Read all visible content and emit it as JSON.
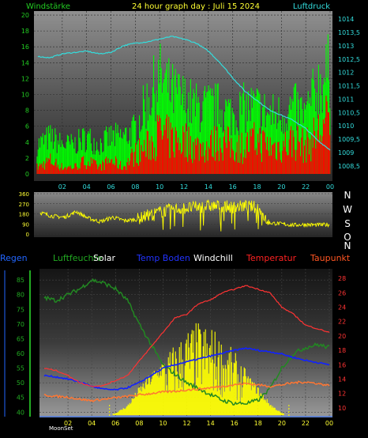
{
  "header": {
    "left_label": "Windstärke",
    "title": "24 hour graph day : Juli 15 2024",
    "right_label": "Luftdruck"
  },
  "legend": [
    {
      "label": "Regen",
      "color": "#2266ff"
    },
    {
      "label": "Luftfeuchte",
      "color": "#22aa22"
    },
    {
      "label": "Solar",
      "color": "#ffffff"
    },
    {
      "label": "Temp Boden",
      "color": "#2233ff"
    },
    {
      "label": "Windchill",
      "color": "#ffffff"
    },
    {
      "label": "Temperatur",
      "color": "#ff2222"
    },
    {
      "label": "Taupunkt",
      "color": "#ff5522"
    }
  ],
  "direction_labels": [
    "N",
    "W",
    "S",
    "O",
    "N"
  ],
  "footer": {
    "moon_label": "MoonSet"
  },
  "colors": {
    "wind_gust": "#00ff00",
    "wind_avg": "#ff0000",
    "pressure": "#33dddd",
    "direction": "#ffff00",
    "solar": "#ffff00",
    "temperature": "#ff3333",
    "humidity": "#228822",
    "soil_temp": "#1122ff",
    "dewpoint": "#ff7733",
    "windchill": "#ffffff"
  },
  "chart_data": [
    {
      "type": "line",
      "title": "24 hour graph day : Juli 15 2024",
      "xlabel": "",
      "y_left_label": "Windstärke",
      "y_right_label": "Luftdruck",
      "x_ticks": [
        "02",
        "04",
        "06",
        "08",
        "10",
        "12",
        "14",
        "16",
        "18",
        "20",
        "22",
        "00"
      ],
      "y_left_ticks": [
        "0",
        "2",
        "4",
        "6",
        "8",
        "10",
        "12",
        "14",
        "16",
        "18",
        "20"
      ],
      "y_left_lim": [
        0,
        20.5
      ],
      "y_right_ticks": [
        "1008,5",
        "1009",
        "1009,5",
        "1010",
        "1010,5",
        "1011",
        "1011,5",
        "1012",
        "1012,5",
        "1013",
        "1013,5",
        "1014"
      ],
      "y_right_lim": [
        1008.2,
        1014.3
      ],
      "x_hours": [
        0,
        1,
        2,
        3,
        4,
        5,
        6,
        7,
        8,
        9,
        10,
        11,
        12,
        13,
        14,
        15,
        16,
        17,
        18,
        19,
        20,
        21,
        22,
        23,
        24
      ],
      "series": [
        {
          "name": "Windstärke Böen",
          "axis": "left",
          "values": [
            4,
            5,
            4,
            4,
            5,
            4,
            5,
            5,
            6,
            10,
            13,
            11,
            10,
            9,
            9,
            9,
            8,
            9,
            9,
            8,
            8,
            9,
            8,
            12,
            14
          ]
        },
        {
          "name": "Windstärke Mittel",
          "axis": "left",
          "values": [
            1,
            2,
            1,
            1,
            2,
            1,
            2,
            1,
            3,
            4,
            6,
            5,
            5,
            4,
            4,
            5,
            4,
            4,
            5,
            4,
            4,
            5,
            4,
            6,
            8
          ]
        },
        {
          "name": "Luftdruck",
          "axis": "right",
          "values": [
            1012.6,
            1012.55,
            1012.7,
            1012.75,
            1012.8,
            1012.7,
            1012.75,
            1013.0,
            1013.1,
            1013.15,
            1013.25,
            1013.35,
            1013.25,
            1013.1,
            1012.8,
            1012.35,
            1011.8,
            1011.3,
            1010.95,
            1010.6,
            1010.4,
            1010.2,
            1009.9,
            1009.45,
            1009.1
          ]
        }
      ]
    },
    {
      "type": "line",
      "title": "",
      "x_hours": [
        0,
        1,
        2,
        3,
        4,
        5,
        6,
        7,
        8,
        9,
        10,
        11,
        12,
        13,
        14,
        15,
        16,
        17,
        18,
        19,
        20,
        21,
        22,
        23,
        24
      ],
      "y_ticks": [
        "0",
        "90",
        "180",
        "270",
        "360"
      ],
      "ylim": [
        0,
        360
      ],
      "series": [
        {
          "name": "Windrichtung",
          "values": [
            190,
            160,
            150,
            200,
            140,
            110,
            150,
            120,
            130,
            170,
            200,
            220,
            230,
            240,
            250,
            250,
            240,
            250,
            240,
            100,
            90,
            80,
            85,
            80,
            85
          ]
        }
      ]
    },
    {
      "type": "line",
      "title": "",
      "x_ticks": [
        "02",
        "04",
        "06",
        "08",
        "10",
        "12",
        "14",
        "16",
        "18",
        "20",
        "22",
        "00"
      ],
      "x_hours": [
        0,
        1,
        2,
        3,
        4,
        5,
        6,
        7,
        8,
        9,
        10,
        11,
        12,
        13,
        14,
        15,
        16,
        17,
        18,
        19,
        20,
        21,
        22,
        23,
        24
      ],
      "y_left_ticks": [
        "40",
        "45",
        "50",
        "55",
        "60",
        "65",
        "70",
        "75",
        "80",
        "85"
      ],
      "y_left_lim": [
        39,
        88
      ],
      "y_right_ticks": [
        "10",
        "12",
        "14",
        "16",
        "18",
        "20",
        "22",
        "24",
        "26",
        "28"
      ],
      "y_right_lim": [
        9,
        29
      ],
      "series": [
        {
          "name": "Luftfeuchte",
          "axis": "left",
          "values": [
            79,
            78,
            80,
            82,
            85,
            84,
            82,
            78,
            70,
            63,
            56,
            53,
            50,
            48,
            46,
            44,
            43,
            43,
            44,
            48,
            55,
            60,
            62,
            63,
            62
          ]
        },
        {
          "name": "Temperatur",
          "axis": "right",
          "values": [
            15.5,
            15.2,
            14.5,
            13.5,
            13.0,
            13.1,
            13.8,
            14.5,
            16.5,
            18.5,
            20.5,
            22.5,
            23.0,
            24.5,
            25.0,
            26.0,
            26.5,
            27.0,
            26.5,
            26.0,
            24.0,
            23.0,
            21.5,
            21.0,
            20.5
          ]
        },
        {
          "name": "Temp Boden",
          "axis": "right",
          "values": [
            14.5,
            14.3,
            14.0,
            13.6,
            13.0,
            12.6,
            12.5,
            12.8,
            13.5,
            14.5,
            15.5,
            16.0,
            16.4,
            16.8,
            17.2,
            17.6,
            18.0,
            18.3,
            18.0,
            17.8,
            17.5,
            17.0,
            16.6,
            16.3,
            16.0
          ]
        },
        {
          "name": "Taupunkt",
          "axis": "right",
          "values": [
            11.8,
            11.6,
            11.5,
            11.2,
            11.0,
            11.2,
            11.4,
            11.6,
            11.8,
            12.0,
            12.2,
            12.3,
            12.5,
            12.6,
            12.8,
            13.0,
            13.2,
            13.4,
            13.2,
            13.0,
            13.2,
            13.5,
            13.6,
            13.4,
            13.1
          ]
        },
        {
          "name": "Solar",
          "axis": "none",
          "values": [
            0,
            0,
            0,
            0,
            0,
            0,
            0.02,
            0.1,
            0.28,
            0.42,
            0.55,
            0.68,
            0.82,
            0.88,
            0.85,
            0.72,
            0.6,
            0.42,
            0.28,
            0.12,
            0.02,
            0,
            0,
            0,
            0
          ]
        }
      ]
    }
  ]
}
